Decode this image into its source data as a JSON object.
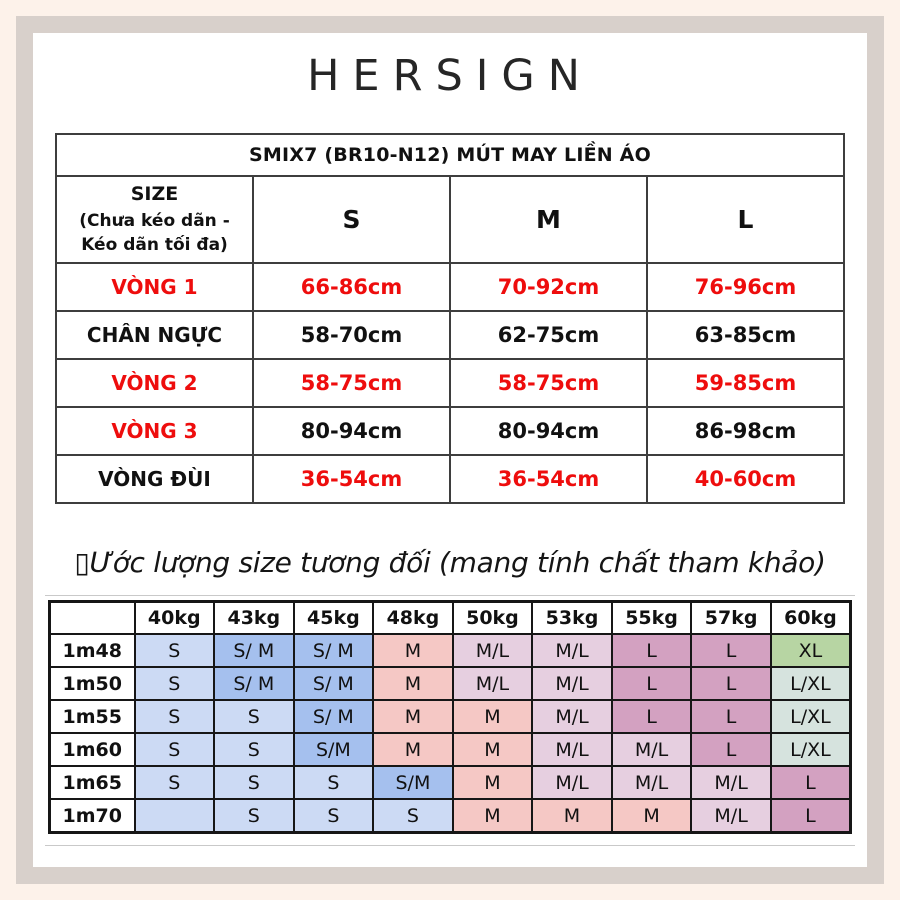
{
  "brand": {
    "logo_text": "HERSIGN"
  },
  "spec_table": {
    "title": "SMIX7 (BR10-N12) MÚT MAY LIỀN ÁO",
    "corner_lines": [
      "SIZE",
      "(Chưa kéo dãn -",
      "Kéo dãn tối đa)"
    ],
    "size_headers": [
      "S",
      "M",
      "L"
    ],
    "rows": [
      {
        "label": "VÒNG 1",
        "label_color": "#ee0d0d",
        "values": [
          "66-86cm",
          "70-92cm",
          "76-96cm"
        ],
        "value_color": "#ee0d0d"
      },
      {
        "label": "CHÂN NGỰC",
        "label_color": "#111111",
        "values": [
          "58-70cm",
          "62-75cm",
          "63-85cm"
        ],
        "value_color": "#111111"
      },
      {
        "label": "VÒNG 2",
        "label_color": "#ee0d0d",
        "values": [
          "58-75cm",
          "58-75cm",
          "59-85cm"
        ],
        "value_color": "#ee0d0d"
      },
      {
        "label": "VÒNG 3",
        "label_color": "#ee0d0d",
        "values": [
          "80-94cm",
          "80-94cm",
          "86-98cm"
        ],
        "value_color": "#111111"
      },
      {
        "label": "VÒNG ĐÙI",
        "label_color": "#111111",
        "values": [
          "36-54cm",
          "36-54cm",
          "40-60cm"
        ],
        "value_color": "#ee0d0d"
      }
    ]
  },
  "estimate": {
    "heading": "▯Ước lượng size tương đối (mang tính chất tham khảo)"
  },
  "weight_table": {
    "weight_headers": [
      "",
      "40kg",
      "43kg",
      "45kg",
      "48kg",
      "50kg",
      "53kg",
      "55kg",
      "57kg",
      "60kg"
    ],
    "rows": [
      {
        "height": "1m48",
        "cells": [
          "S",
          "S/ M",
          "S/ M",
          "M",
          "M/L",
          "M/L",
          "L",
          "L",
          "XL"
        ]
      },
      {
        "height": "1m50",
        "cells": [
          "S",
          "S/ M",
          "S/ M",
          "M",
          "M/L",
          "M/L",
          "L",
          "L",
          "L/XL"
        ]
      },
      {
        "height": "1m55",
        "cells": [
          "S",
          "S",
          "S/ M",
          "M",
          "M",
          "M/L",
          "L",
          "L",
          "L/XL"
        ]
      },
      {
        "height": "1m60",
        "cells": [
          "S",
          "S",
          "S/M",
          "M",
          "M",
          "M/L",
          "M/L",
          "L",
          "L/XL"
        ]
      },
      {
        "height": "1m65",
        "cells": [
          "S",
          "S",
          "S",
          "S/M",
          "M",
          "M/L",
          "M/L",
          "M/L",
          "L"
        ]
      },
      {
        "height": "1m70",
        "cells": [
          "",
          "S",
          "S",
          "S",
          "M",
          "M",
          "M",
          "M/L",
          "L"
        ]
      }
    ],
    "value_colors": {
      "S": "#ccdaf4",
      "S/M": "#a5c0ee",
      "M": "#f5c8c5",
      "M/L": "#e6cfe0",
      "L": "#d3a1c1",
      "XL": "#b7d5a3",
      "L/XL": "#d6e3de",
      "empty": "#ccdaf4"
    }
  },
  "colors": {
    "frame_outer": "#fdf2ea",
    "frame_band": "#d8d0cb",
    "red_text": "#ee0d0d",
    "spec_border": "#3e3e3e",
    "weight_border": "#161616"
  }
}
